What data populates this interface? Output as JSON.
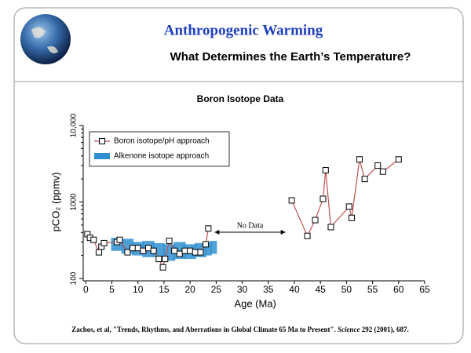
{
  "header": {
    "title": "Anthropogenic Warming",
    "subtitle": "What Determines the Earth’s Temperature?"
  },
  "chart_data": {
    "type": "line",
    "title": "Boron Isotope Data",
    "x_label": "Age (Ma)",
    "y_label": "pCO₂ (ppmv)",
    "xlim": [
      -0.5,
      65
    ],
    "xticks": [
      0,
      5,
      10,
      15,
      20,
      25,
      30,
      35,
      40,
      45,
      50,
      55,
      60,
      65
    ],
    "ylim": [
      100,
      10000
    ],
    "log_y": true,
    "yticks": [
      100,
      1000,
      {
        "value": 10000,
        "label": "10,000"
      }
    ],
    "legend": "upper left",
    "annotation": "No Data",
    "series": [
      {
        "name": "Boron isotope/pH approach",
        "color": "#c0504d",
        "marker": "open-square",
        "x": [
          0.3,
          0.8,
          1.5,
          2.5,
          3,
          3.5,
          6,
          6.5,
          8,
          9,
          10,
          11,
          12,
          13,
          14,
          14.8,
          15.2,
          16,
          17,
          18,
          19,
          20,
          21,
          22,
          23,
          23.5,
          null,
          39.5,
          42.5,
          44,
          45.5,
          46,
          47,
          50.5,
          51,
          52.5,
          53.5,
          56,
          57,
          60
        ],
        "values": [
          380,
          340,
          320,
          220,
          260,
          290,
          300,
          320,
          220,
          250,
          250,
          230,
          250,
          230,
          180,
          140,
          180,
          310,
          230,
          210,
          230,
          230,
          220,
          220,
          280,
          450,
          null,
          1050,
          360,
          580,
          1100,
          2600,
          470,
          870,
          620,
          3600,
          2000,
          3000,
          2500,
          3600
        ]
      },
      {
        "name": "Alkenone isotope approach",
        "color": "#2f8fd0",
        "kind": "band",
        "x": [
          5,
          7,
          9,
          11,
          13,
          15,
          17,
          19,
          21,
          23,
          24
        ],
        "values": [
          340,
          330,
          300,
          310,
          290,
          280,
          300,
          280,
          290,
          300,
          310
        ],
        "low": [
          230,
          210,
          200,
          190,
          190,
          170,
          180,
          180,
          190,
          200,
          210
        ]
      }
    ]
  },
  "citation": {
    "before": "Zachos, et al, \"Trends, Rhythms, and Aberrations in Global Climate 65 Ma to Present\". ",
    "journal": "Science",
    "after": " 292 (2001), 687."
  }
}
